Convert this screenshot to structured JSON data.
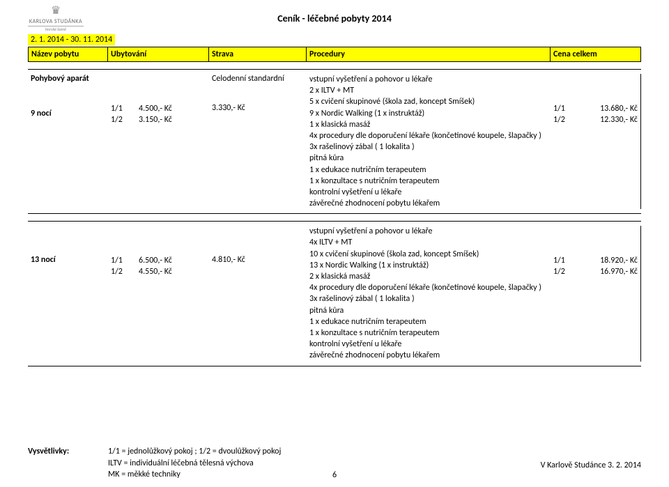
{
  "logo": {
    "brand": "KARLOVA STUDÁNKA",
    "sub": "horské lázně"
  },
  "doc_title": "Ceník - léčebné pobyty 2014",
  "date_range": "2. 1. 2014 - 30. 11. 2014",
  "header": {
    "name": "Název pobytu",
    "ubyt": "Ubytování",
    "strava": "Strava",
    "proc": "Procedury",
    "price": "Cena celkem"
  },
  "block1": {
    "name_top": "Pohybový aparát",
    "name_bottom": "9 nocí",
    "ubyt": [
      {
        "l": "1/1",
        "r": "4.500,- Kč"
      },
      {
        "l": "1/2",
        "r": "3.150,- Kč"
      }
    ],
    "strava_top": "Celodenní standardní",
    "strava_val": "3.330,- Kč",
    "proc": [
      "vstupní vyšetření a pohovor u lékaře",
      "2 x ILTV + MT",
      "5 x cvičení skupinové (škola zad, koncept Smíšek)",
      "9 x Nordic Walking (1 x instruktáž)",
      "1 x klasická masáž",
      "4x procedury dle doporučení lékaře (končetinové koupele, šlapačky )",
      "3x rašelinový zábal ( 1 lokalita )",
      "pitná kůra",
      "1 x edukace nutričním terapeutem",
      "1 x konzultace s nutričním terapeutem",
      "kontrolní vyšetření u lékaře",
      "závěrečné zhodnocení pobytu lékařem"
    ],
    "price": [
      {
        "l": "1/1",
        "r": "13.680,- Kč"
      },
      {
        "l": "1/2",
        "r": "12.330,- Kč"
      }
    ]
  },
  "block2": {
    "name_top": "",
    "name_bottom": "13 nocí",
    "ubyt": [
      {
        "l": "1/1",
        "r": "6.500,- Kč"
      },
      {
        "l": "1/2",
        "r": "4.550,- Kč"
      }
    ],
    "strava_val": "4.810,- Kč",
    "proc": [
      "vstupní vyšetření a pohovor u lékaře",
      "4x ILTV + MT",
      "10 x cvičení skupinové (škola zad, koncept Smíšek)",
      "13 x Nordic Walking (1 x instruktáž)",
      "2 x klasická masáž",
      "4x procedury dle doporučení lékaře (končetinové koupele, šlapačky )",
      "3x rašelinový zábal ( 1 lokalita )",
      "pitná kůra",
      "1 x edukace nutričním terapeutem",
      "1 x konzultace s nutričním terapeutem",
      "kontrolní vyšetření u lékaře",
      "závěrečné zhodnocení pobytu lékařem"
    ],
    "price": [
      {
        "l": "1/1",
        "r": "18.920,- Kč"
      },
      {
        "l": "1/2",
        "r": "16.970,- Kč"
      }
    ]
  },
  "footer": {
    "label": "Vysvětlivky:",
    "line1": "1/1 = jednolůžkový pokoj ; 1/2 = dvoulůžkový pokoj",
    "line2": "ILTV = individuální léčebná tělesná výchova",
    "line3": "MK = měkké techniky",
    "right": "V Karlově Studánce 3. 2. 2014",
    "page": "6"
  },
  "colors": {
    "highlight": "#ffff00",
    "border": "#000000",
    "text": "#000000",
    "logo_gray": "#888888"
  }
}
